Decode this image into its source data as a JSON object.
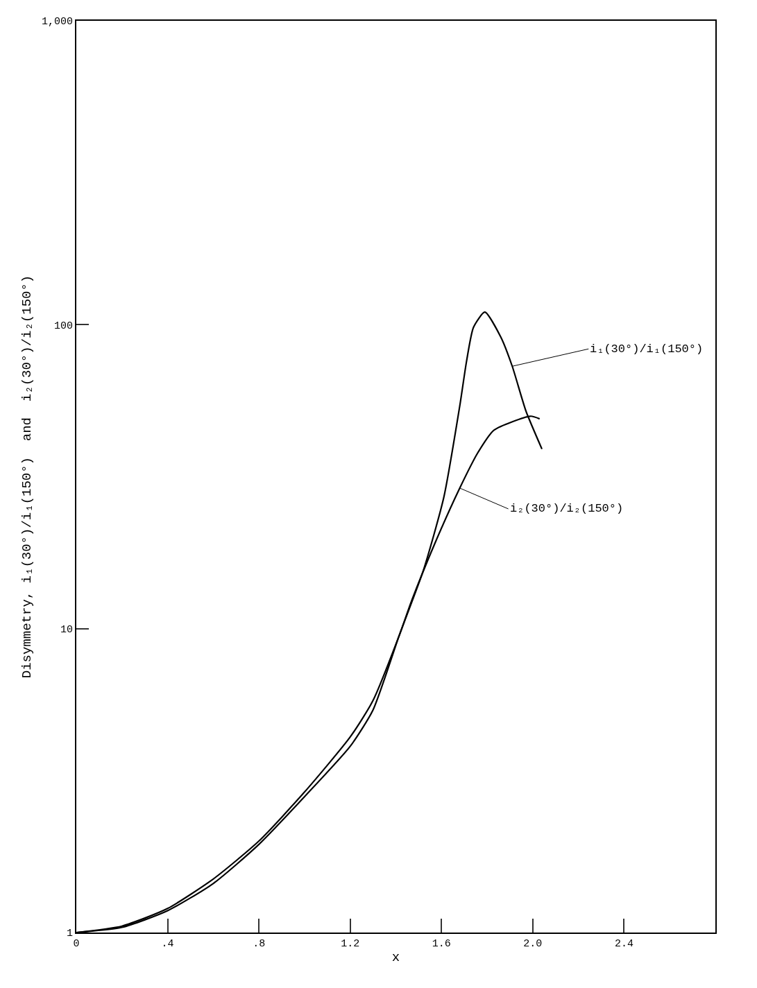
{
  "chart_data": {
    "type": "line",
    "xlabel": "x",
    "ylabel": "Disymmetry, i₁(30°)/i₁(150°)  and  i₂(30°)/i₂(150°)",
    "series": [
      {
        "color": "#000000",
        "x": [
          0,
          0.2,
          0.4,
          0.6,
          0.8,
          1.0,
          1.2,
          1.3,
          1.415,
          1.52,
          1.61,
          1.68,
          1.71,
          1.74,
          1.79,
          1.86,
          1.91,
          1.97,
          2.04
        ],
        "values": [
          1,
          1.04,
          1.18,
          1.45,
          1.95,
          2.8,
          4.1,
          5.4,
          9.5,
          15.5,
          27,
          54,
          76,
          98,
          110,
          91,
          73,
          52,
          39
        ]
      },
      {
        "color": "#000000",
        "x": [
          0,
          0.2,
          0.4,
          0.6,
          0.8,
          1.0,
          1.2,
          1.3,
          1.415,
          1.47,
          1.57,
          1.68,
          1.76,
          1.83,
          1.99,
          2.03
        ],
        "values": [
          1,
          1.05,
          1.2,
          1.5,
          2.0,
          2.9,
          4.4,
          5.8,
          9.5,
          12.4,
          19,
          29,
          38,
          45,
          50,
          49
        ]
      }
    ],
    "xlim": [
      0,
      2.8
    ],
    "xticks": [
      0,
      {
        "value": 0.4,
        "label": ".4"
      },
      {
        "value": 0.8,
        "label": ".8"
      },
      1.2,
      1.6,
      {
        "value": 2.0,
        "label": "2.0"
      },
      2.4
    ],
    "ylim": [
      1,
      1000
    ],
    "yticks": [
      1,
      10,
      100,
      {
        "value": 1000,
        "label": "1,000"
      }
    ],
    "log": true,
    "marker": "none",
    "line_style": "solid",
    "annotations": [
      {
        "text": "i₁(30°)/i₁(150°)",
        "x": 1.91,
        "y": 73
      },
      {
        "text": "i₂(30°)/i₂(150°)",
        "x": 1.68,
        "y": 29
      }
    ]
  }
}
